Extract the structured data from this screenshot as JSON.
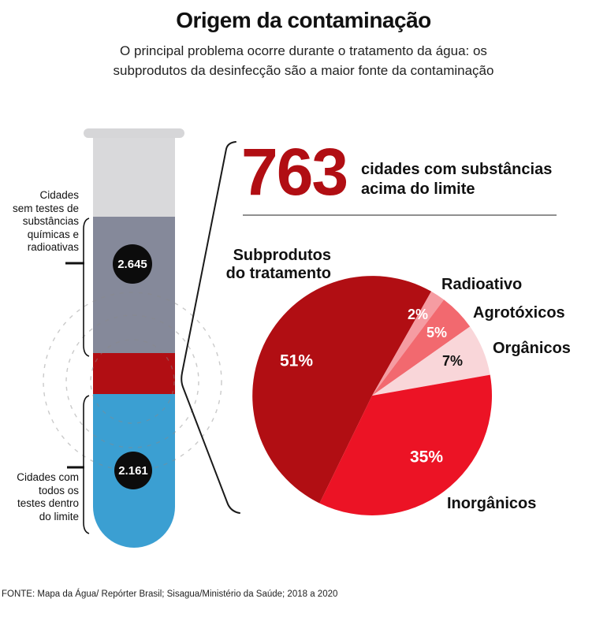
{
  "header": {
    "title": "Origem da contaminação",
    "subtitle_line1": "O principal problema ocorre durante o tratamento da água: os",
    "subtitle_line2": "subprodutos da desinfecção são a maior fonte da contaminação"
  },
  "tube": {
    "no_tests_label_lines": [
      "Cidades",
      "sem testes de",
      "substâncias",
      "químicas e",
      "radioativas"
    ],
    "no_tests_count": "2.645",
    "within_limit_label_lines": [
      "Cidades com",
      "todos os",
      "testes dentro",
      "do limite"
    ],
    "within_limit_count": "2.161",
    "colors": {
      "empty": "#d9d9db",
      "cap": "#d6d6d8",
      "no_tests": "#85899a",
      "above_limit": "#b10e13",
      "within_limit": "#3b9fd2"
    }
  },
  "highlight": {
    "number": "763",
    "caption_line1": "cidades com substâncias",
    "caption_line2": "acima do limite",
    "color": "#b10e13"
  },
  "chart_data": [
    {
      "type": "bar",
      "stacked": true,
      "categories": [
        "cidades"
      ],
      "series": [
        {
          "name": "Cidades sem testes de substâncias químicas e radioativas",
          "values": [
            2645
          ],
          "color": "#85899a"
        },
        {
          "name": "cidades com substâncias acima do limite",
          "values": [
            763
          ],
          "color": "#b10e13"
        },
        {
          "name": "Cidades com todos os testes dentro do limite",
          "values": [
            2161
          ],
          "color": "#3b9fd2"
        }
      ]
    },
    {
      "type": "pie",
      "start_angle_deg_clockwise_from_top": 206,
      "value_suffix": "%",
      "legend_position": "around",
      "slices": [
        {
          "label": "Subprodutos do tratamento",
          "value": 51,
          "color": "#b10e13"
        },
        {
          "label": "Radioativo",
          "value": 2,
          "color": "#f59ca2"
        },
        {
          "label": "Agrotóxicos",
          "value": 5,
          "color": "#f2696f"
        },
        {
          "label": "Orgânicos",
          "value": 7,
          "color": "#f9d6d9"
        },
        {
          "label": "Inorgânicos",
          "value": 35,
          "color": "#ec1325"
        }
      ]
    }
  ],
  "footer": {
    "source": "FONTE: Mapa da Água/ Repórter Brasil; Sisagua/Ministério da Saúde; 2018 a 2020"
  }
}
